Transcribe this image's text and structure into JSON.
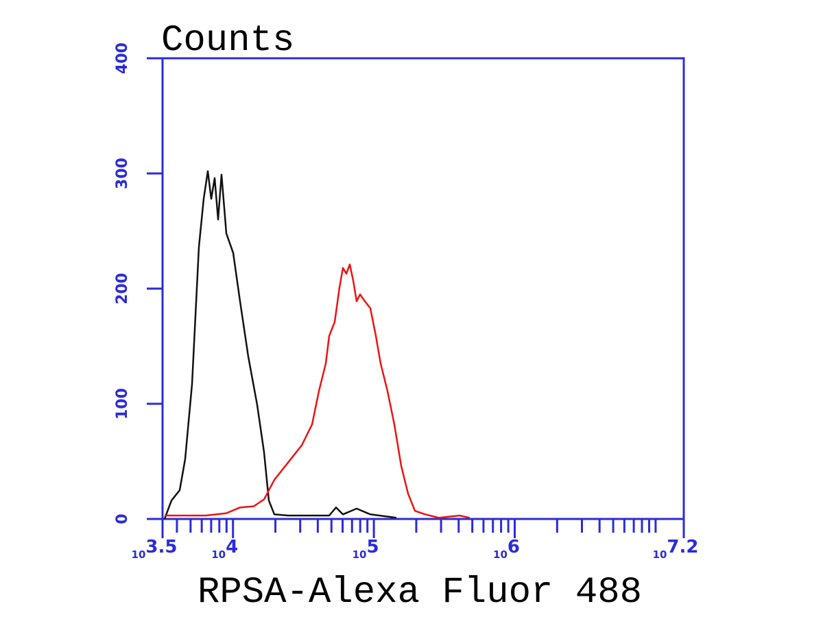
{
  "chart_data": {
    "type": "line",
    "title": "Counts",
    "x_label": "RPSA-Alexa Fluor 488",
    "x_scale": "log",
    "xlim": [
      3162.28,
      15848932
    ],
    "xticks": [
      {
        "value": 3162.28,
        "label": "10",
        "power": "3.5"
      },
      {
        "value": 10000,
        "label": "10",
        "power": "4"
      },
      {
        "value": 100000,
        "label": "10",
        "power": "5"
      },
      {
        "value": 1000000,
        "label": "10",
        "power": "6"
      },
      {
        "value": 15848932,
        "label": "10",
        "power": "7.2"
      }
    ],
    "xminor_ticks": [
      4000,
      5000,
      6000,
      7000,
      8000,
      9000,
      20000,
      30000,
      40000,
      50000,
      60000,
      70000,
      80000,
      90000,
      200000,
      300000,
      400000,
      500000,
      600000,
      700000,
      800000,
      900000,
      2000000,
      3000000,
      4000000,
      5000000,
      6000000,
      7000000,
      8000000,
      9000000,
      10000000
    ],
    "ylim": [
      0,
      400
    ],
    "yticks": [
      0,
      100,
      200,
      300,
      400
    ],
    "axis_color": "#2b2bd9",
    "series": [
      {
        "color": "#111111",
        "x": [
          3270,
          3658,
          4184,
          4577,
          5121,
          5728,
          6196,
          6627,
          7009,
          7413,
          7841,
          8292,
          8971,
          10033,
          11222,
          12840,
          14851,
          16612,
          17967,
          19661,
          24598,
          48195,
          53914,
          60311,
          75453,
          94435,
          144600
        ],
        "values": [
          0,
          16,
          25,
          52,
          117,
          236,
          278,
          302,
          278,
          296,
          260,
          299,
          248,
          231,
          189,
          141,
          99,
          58,
          16,
          4,
          3,
          3,
          10,
          4,
          9,
          4,
          1
        ]
      },
      {
        "color": "#ee1111",
        "x": [
          3270,
          6408,
          8971,
          11222,
          14044,
          16612,
          19661,
          24598,
          30780,
          36413,
          40738,
          45582,
          48195,
          52723,
          57044,
          60311,
          63770,
          67452,
          71352,
          75453,
          79816,
          86360,
          94435,
          103300,
          111740,
          124966,
          139800,
          156400,
          175000,
          195600,
          231500,
          289700,
          405600,
          479700
        ],
        "values": [
          3,
          3,
          5,
          10,
          11,
          17,
          34,
          49,
          64,
          82,
          111,
          135,
          159,
          171,
          201,
          218,
          213,
          221,
          207,
          189,
          195,
          189,
          183,
          159,
          135,
          111,
          82,
          46,
          22,
          7,
          4,
          1,
          3,
          1
        ]
      }
    ]
  }
}
